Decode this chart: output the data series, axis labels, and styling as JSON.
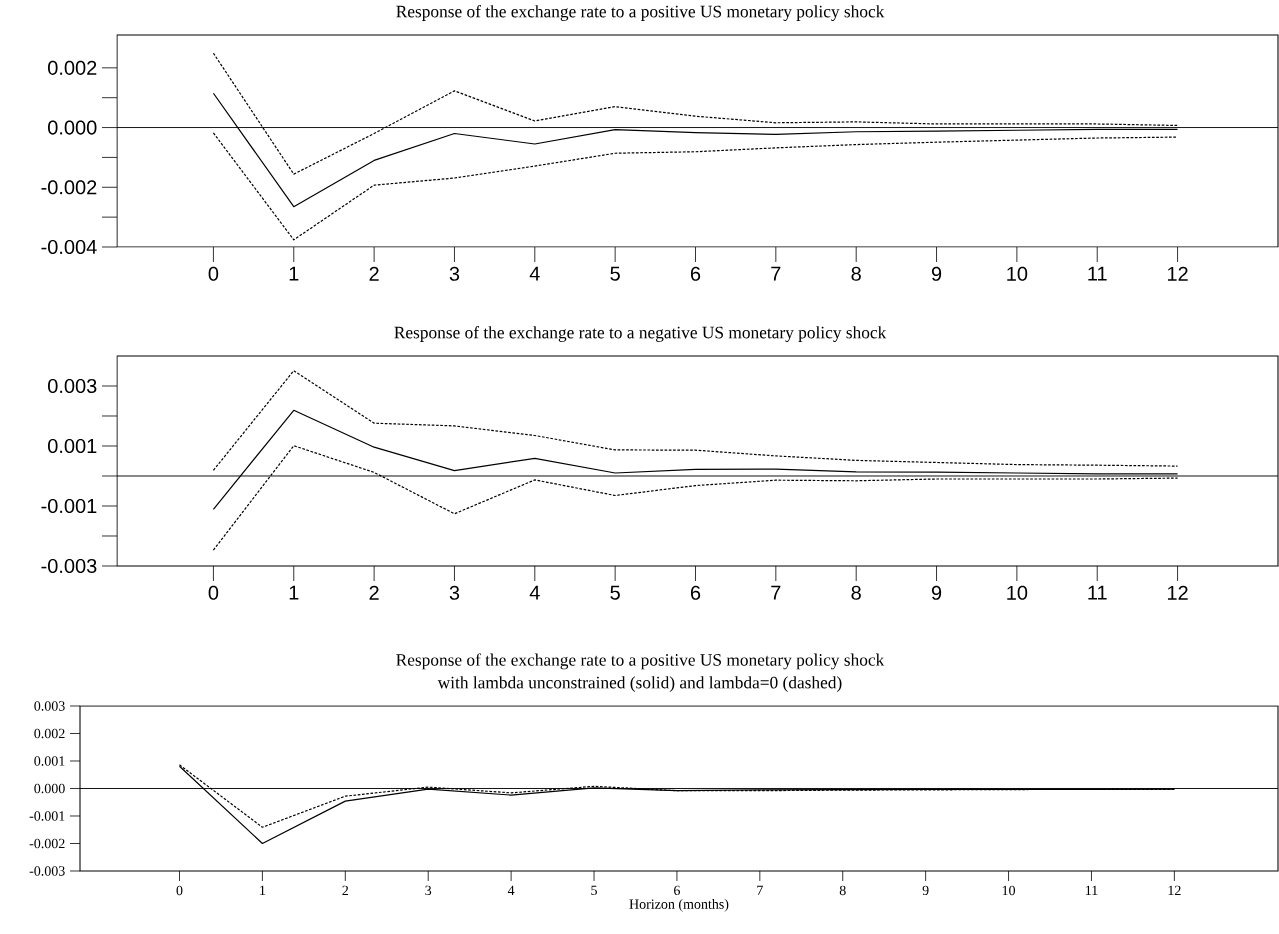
{
  "chart_data": [
    {
      "type": "line",
      "title": "Response of the exchange rate to a positive US monetary policy shock",
      "x": [
        0,
        1,
        2,
        3,
        4,
        5,
        6,
        7,
        8,
        9,
        10,
        11,
        12
      ],
      "xlim": [
        -1.2,
        13.25
      ],
      "xticks": [
        0,
        1,
        2,
        3,
        4,
        5,
        6,
        7,
        8,
        9,
        10,
        11,
        12
      ],
      "ylim": [
        -0.004,
        0.0031
      ],
      "yticks": [
        {
          "value": -0.004,
          "label": "-0.004"
        },
        {
          "value": -0.003,
          "label": null
        },
        {
          "value": -0.002,
          "label": "-0.002"
        },
        {
          "value": -0.001,
          "label": null
        },
        {
          "value": 0,
          "label": "0.000"
        },
        {
          "value": 0.001,
          "label": null
        },
        {
          "value": 0.002,
          "label": "0.002"
        }
      ],
      "grid": false,
      "ref_lines": [
        {
          "axis": "y",
          "value": 0,
          "color": "#000000",
          "line_style": "solid"
        }
      ],
      "series": [
        {
          "color": "#000000",
          "line_style": "solid",
          "values": [
            0.00115,
            -0.00265,
            -0.0011,
            -0.0002,
            -0.00055,
            -7e-05,
            -0.00017,
            -0.00023,
            -0.00014,
            -0.00012,
            -9e-05,
            -6e-05,
            -6e-05
          ]
        },
        {
          "color": "#000000",
          "line_style": "dotted",
          "values": [
            0.00249,
            -0.00156,
            -0.0002,
            0.00123,
            0.00022,
            0.0007,
            0.00038,
            0.00016,
            0.00019,
            0.00012,
            0.00012,
            0.00012,
            7e-05
          ]
        },
        {
          "color": "#000000",
          "line_style": "dotted",
          "values": [
            -0.00018,
            -0.00376,
            -0.00193,
            -0.00169,
            -0.00129,
            -0.00086,
            -0.00081,
            -0.00068,
            -0.00057,
            -0.00049,
            -0.00042,
            -0.00035,
            -0.00032
          ]
        }
      ]
    },
    {
      "type": "line",
      "title": "Response of the exchange rate to a negative US monetary policy shock",
      "x": [
        0,
        1,
        2,
        3,
        4,
        5,
        6,
        7,
        8,
        9,
        10,
        11,
        12
      ],
      "xlim": [
        -1.2,
        13.25
      ],
      "xticks": [
        0,
        1,
        2,
        3,
        4,
        5,
        6,
        7,
        8,
        9,
        10,
        11,
        12
      ],
      "ylim": [
        -0.003,
        0.004
      ],
      "yticks": [
        {
          "value": -0.003,
          "label": "-0.003"
        },
        {
          "value": -0.002,
          "label": null
        },
        {
          "value": -0.001,
          "label": "-0.001"
        },
        {
          "value": 0,
          "label": null
        },
        {
          "value": 0.001,
          "label": "0.001"
        },
        {
          "value": 0.002,
          "label": null
        },
        {
          "value": 0.003,
          "label": "0.003"
        }
      ],
      "grid": false,
      "ref_lines": [
        {
          "axis": "y",
          "value": 0,
          "color": "#000000",
          "line_style": "solid"
        }
      ],
      "series": [
        {
          "color": "#000000",
          "line_style": "solid",
          "values": [
            -0.00111,
            0.00219,
            0.00096,
            0.00018,
            0.00059,
            0.0001,
            0.00022,
            0.00023,
            0.00014,
            0.00013,
            0.0001,
            7e-05,
            7e-05
          ]
        },
        {
          "color": "#000000",
          "line_style": "dotted",
          "values": [
            0.00019,
            0.00351,
            0.00176,
            0.00167,
            0.00135,
            0.00087,
            0.00086,
            0.00067,
            0.00052,
            0.00045,
            0.00038,
            0.00036,
            0.00033
          ]
        },
        {
          "color": "#000000",
          "line_style": "dotted",
          "values": [
            -0.00247,
            0.00101,
            0.00012,
            -0.00126,
            -0.00013,
            -0.00065,
            -0.00032,
            -0.00014,
            -0.00016,
            -0.0001,
            -0.0001,
            -0.0001,
            -7e-05
          ]
        }
      ]
    },
    {
      "type": "line",
      "title": "Response of the exchange rate to a positive US monetary policy shock",
      "subtitle": "with lambda unconstrained (solid) and lambda=0 (dashed)",
      "xlabel": "Horizon (months)",
      "x": [
        0,
        1,
        2,
        3,
        4,
        5,
        6,
        7,
        8,
        9,
        10,
        11,
        12
      ],
      "xlim": [
        -1.2,
        13.25
      ],
      "xticks": [
        0,
        1,
        2,
        3,
        4,
        5,
        6,
        7,
        8,
        9,
        10,
        11,
        12
      ],
      "ylim": [
        -0.003,
        0.003
      ],
      "yticks": [
        {
          "value": -0.003,
          "label": "-0.003"
        },
        {
          "value": -0.002,
          "label": "-0.002"
        },
        {
          "value": -0.001,
          "label": "-0.001"
        },
        {
          "value": 0,
          "label": "0.000"
        },
        {
          "value": 0.001,
          "label": "0.001"
        },
        {
          "value": 0.002,
          "label": "0.002"
        },
        {
          "value": 0.003,
          "label": "0.003"
        }
      ],
      "grid": false,
      "ref_lines": [
        {
          "axis": "y",
          "value": 0,
          "color": "#000000",
          "line_style": "solid"
        }
      ],
      "series": [
        {
          "color": "#000000",
          "line_style": "solid",
          "values": [
            0.00081,
            -0.002,
            -0.00046,
            -2e-05,
            -0.00024,
            2e-05,
            -8e-05,
            -5e-05,
            -4e-05,
            -3e-05,
            -3e-05,
            -3e-05,
            -2e-05
          ]
        },
        {
          "color": "#000000",
          "line_style": "dotted",
          "values": [
            0.00086,
            -0.00141,
            -0.00028,
            5e-05,
            -0.00016,
            8e-05,
            -8e-05,
            -8e-05,
            -6e-05,
            -5e-05,
            -4e-05,
            -3e-05,
            -3e-05
          ]
        }
      ]
    }
  ]
}
